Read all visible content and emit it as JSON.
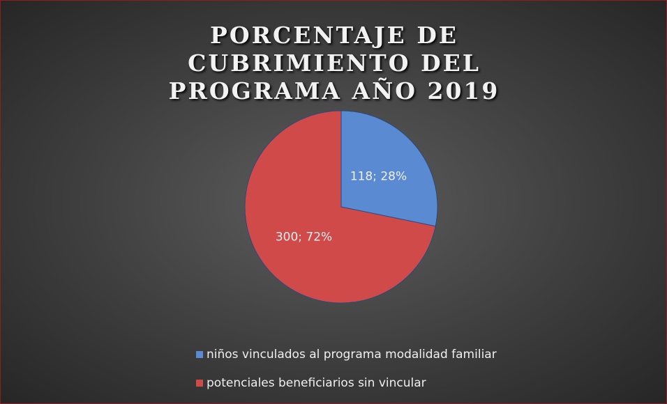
{
  "chart_data": {
    "type": "pie",
    "title": "PORCENTAJE DE CUBRIMIENTO DEL PROGRAMA AÑO 2019",
    "categories": [
      "niños vinculados al programa modalidad familiar",
      "potenciales beneficiarios sin vincular"
    ],
    "values": [
      118,
      300
    ],
    "value_labels": [
      "118; 28%",
      "300; 72%"
    ],
    "colors": [
      "#5a8ad2",
      "#d14a4a"
    ],
    "legend": "bottom"
  }
}
